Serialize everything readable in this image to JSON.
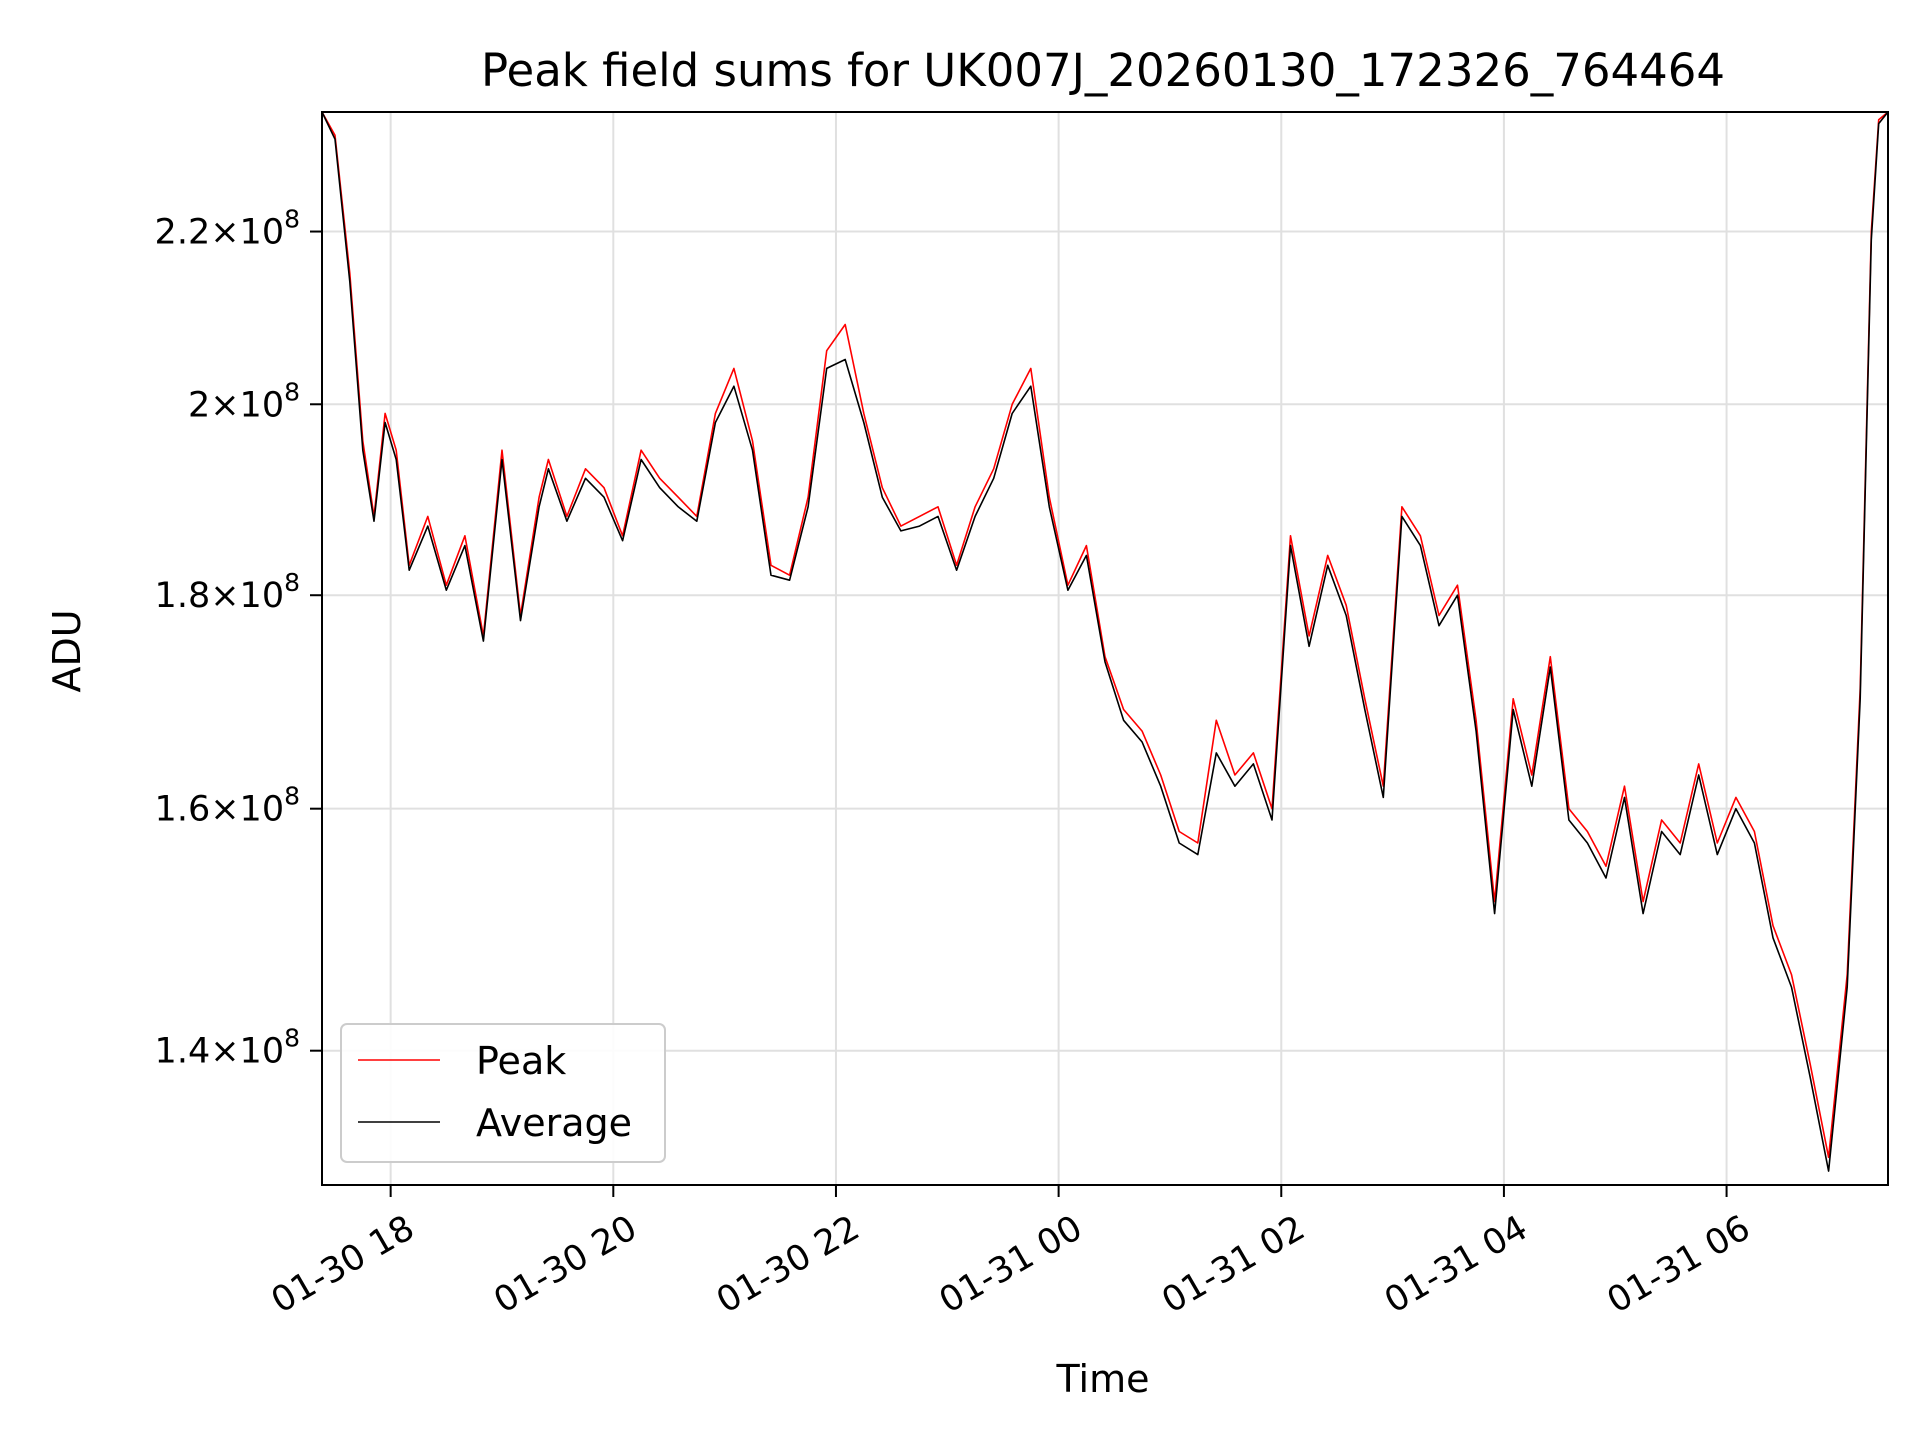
{
  "chart_data": {
    "type": "line",
    "title": "Peak field sums for UK007J_20260130_172326_764464",
    "xlabel": "Time",
    "ylabel": "ADU",
    "y_scale": "log",
    "grid": true,
    "legend_position": "lower-left",
    "xlim": [
      "2026-01-30 17:23",
      "2026-01-31 07:27"
    ],
    "ylim": [
      130000000,
      235000000
    ],
    "x_ticks": [
      {
        "value": "2026-01-30 18:00",
        "label": "01-30 18"
      },
      {
        "value": "2026-01-30 20:00",
        "label": "01-30 20"
      },
      {
        "value": "2026-01-30 22:00",
        "label": "01-30 22"
      },
      {
        "value": "2026-01-31 00:00",
        "label": "01-31 00"
      },
      {
        "value": "2026-01-31 02:00",
        "label": "01-31 02"
      },
      {
        "value": "2026-01-31 04:00",
        "label": "01-31 04"
      },
      {
        "value": "2026-01-31 06:00",
        "label": "01-31 06"
      }
    ],
    "y_ticks": [
      {
        "value": 140000000,
        "mantissa": "1.4",
        "exponent": "8"
      },
      {
        "value": 160000000,
        "mantissa": "1.6",
        "exponent": "8"
      },
      {
        "value": 180000000,
        "mantissa": "1.8",
        "exponent": "8"
      },
      {
        "value": 200000000,
        "mantissa": "2",
        "exponent": "8"
      },
      {
        "value": 220000000,
        "mantissa": "2.2",
        "exponent": "8"
      }
    ],
    "tick_times_label": "×10",
    "series": [
      {
        "name": "Peak",
        "color": "#ff0000",
        "x": [
          "2026-01-30 17:23",
          "2026-01-30 17:30",
          "2026-01-30 17:38",
          "2026-01-30 17:45",
          "2026-01-30 17:51",
          "2026-01-30 17:57",
          "2026-01-30 18:03",
          "2026-01-30 18:10",
          "2026-01-30 18:20",
          "2026-01-30 18:30",
          "2026-01-30 18:40",
          "2026-01-30 18:50",
          "2026-01-30 19:00",
          "2026-01-30 19:10",
          "2026-01-30 19:20",
          "2026-01-30 19:25",
          "2026-01-30 19:35",
          "2026-01-30 19:45",
          "2026-01-30 19:55",
          "2026-01-30 20:05",
          "2026-01-30 20:15",
          "2026-01-30 20:25",
          "2026-01-30 20:35",
          "2026-01-30 20:45",
          "2026-01-30 20:55",
          "2026-01-30 21:05",
          "2026-01-30 21:15",
          "2026-01-30 21:25",
          "2026-01-30 21:35",
          "2026-01-30 21:45",
          "2026-01-30 21:55",
          "2026-01-30 22:05",
          "2026-01-30 22:15",
          "2026-01-30 22:25",
          "2026-01-30 22:35",
          "2026-01-30 22:45",
          "2026-01-30 22:55",
          "2026-01-30 23:05",
          "2026-01-30 23:15",
          "2026-01-30 23:25",
          "2026-01-30 23:35",
          "2026-01-30 23:45",
          "2026-01-30 23:55",
          "2026-01-31 00:05",
          "2026-01-31 00:15",
          "2026-01-31 00:25",
          "2026-01-31 00:35",
          "2026-01-31 00:45",
          "2026-01-31 00:55",
          "2026-01-31 01:05",
          "2026-01-31 01:15",
          "2026-01-31 01:25",
          "2026-01-31 01:35",
          "2026-01-31 01:45",
          "2026-01-31 01:55",
          "2026-01-31 02:05",
          "2026-01-31 02:15",
          "2026-01-31 02:25",
          "2026-01-31 02:35",
          "2026-01-31 02:45",
          "2026-01-31 02:55",
          "2026-01-31 03:05",
          "2026-01-31 03:15",
          "2026-01-31 03:25",
          "2026-01-31 03:35",
          "2026-01-31 03:45",
          "2026-01-31 03:55",
          "2026-01-31 04:05",
          "2026-01-31 04:15",
          "2026-01-31 04:25",
          "2026-01-31 04:35",
          "2026-01-31 04:45",
          "2026-01-31 04:55",
          "2026-01-31 05:05",
          "2026-01-31 05:15",
          "2026-01-31 05:25",
          "2026-01-31 05:35",
          "2026-01-31 05:45",
          "2026-01-31 05:55",
          "2026-01-31 06:05",
          "2026-01-31 06:15",
          "2026-01-31 06:25",
          "2026-01-31 06:35",
          "2026-01-31 06:45",
          "2026-01-31 06:55",
          "2026-01-31 07:05",
          "2026-01-31 07:12",
          "2026-01-31 07:18",
          "2026-01-31 07:22",
          "2026-01-31 07:27"
        ],
        "values": [
          235000000,
          232000000,
          215000000,
          196000000,
          188000000,
          199000000,
          195000000,
          183000000,
          188000000,
          181000000,
          186000000,
          176000000,
          195000000,
          178000000,
          190000000,
          194000000,
          188000000,
          193000000,
          191000000,
          186000000,
          195000000,
          192000000,
          190000000,
          188000000,
          199000000,
          204000000,
          196000000,
          183000000,
          182000000,
          190000000,
          206000000,
          209000000,
          199000000,
          191000000,
          187000000,
          188000000,
          189000000,
          183000000,
          189000000,
          193000000,
          200000000,
          204000000,
          190000000,
          181000000,
          185000000,
          174000000,
          169000000,
          167000000,
          163000000,
          158000000,
          157000000,
          168000000,
          163000000,
          165000000,
          160000000,
          186000000,
          176000000,
          184000000,
          179000000,
          170000000,
          162000000,
          189000000,
          186000000,
          178000000,
          181000000,
          168000000,
          152000000,
          170000000,
          163000000,
          174000000,
          160000000,
          158000000,
          155000000,
          162000000,
          152000000,
          159000000,
          157000000,
          164000000,
          157000000,
          161000000,
          158000000,
          150000000,
          146000000,
          139000000,
          132000000,
          146000000,
          171000000,
          220000000,
          234000000,
          235000000
        ]
      },
      {
        "name": "Average",
        "color": "#000000",
        "x": [
          "2026-01-30 17:23",
          "2026-01-30 17:30",
          "2026-01-30 17:38",
          "2026-01-30 17:45",
          "2026-01-30 17:51",
          "2026-01-30 17:57",
          "2026-01-30 18:03",
          "2026-01-30 18:10",
          "2026-01-30 18:20",
          "2026-01-30 18:30",
          "2026-01-30 18:40",
          "2026-01-30 18:50",
          "2026-01-30 19:00",
          "2026-01-30 19:10",
          "2026-01-30 19:20",
          "2026-01-30 19:25",
          "2026-01-30 19:35",
          "2026-01-30 19:45",
          "2026-01-30 19:55",
          "2026-01-30 20:05",
          "2026-01-30 20:15",
          "2026-01-30 20:25",
          "2026-01-30 20:35",
          "2026-01-30 20:45",
          "2026-01-30 20:55",
          "2026-01-30 21:05",
          "2026-01-30 21:15",
          "2026-01-30 21:25",
          "2026-01-30 21:35",
          "2026-01-30 21:45",
          "2026-01-30 21:55",
          "2026-01-30 22:05",
          "2026-01-30 22:15",
          "2026-01-30 22:25",
          "2026-01-30 22:35",
          "2026-01-30 22:45",
          "2026-01-30 22:55",
          "2026-01-30 23:05",
          "2026-01-30 23:15",
          "2026-01-30 23:25",
          "2026-01-30 23:35",
          "2026-01-30 23:45",
          "2026-01-30 23:55",
          "2026-01-31 00:05",
          "2026-01-31 00:15",
          "2026-01-31 00:25",
          "2026-01-31 00:35",
          "2026-01-31 00:45",
          "2026-01-31 00:55",
          "2026-01-31 01:05",
          "2026-01-31 01:15",
          "2026-01-31 01:25",
          "2026-01-31 01:35",
          "2026-01-31 01:45",
          "2026-01-31 01:55",
          "2026-01-31 02:05",
          "2026-01-31 02:15",
          "2026-01-31 02:25",
          "2026-01-31 02:35",
          "2026-01-31 02:45",
          "2026-01-31 02:55",
          "2026-01-31 03:05",
          "2026-01-31 03:15",
          "2026-01-31 03:25",
          "2026-01-31 03:35",
          "2026-01-31 03:45",
          "2026-01-31 03:55",
          "2026-01-31 04:05",
          "2026-01-31 04:15",
          "2026-01-31 04:25",
          "2026-01-31 04:35",
          "2026-01-31 04:45",
          "2026-01-31 04:55",
          "2026-01-31 05:05",
          "2026-01-31 05:15",
          "2026-01-31 05:25",
          "2026-01-31 05:35",
          "2026-01-31 05:45",
          "2026-01-31 05:55",
          "2026-01-31 06:05",
          "2026-01-31 06:15",
          "2026-01-31 06:25",
          "2026-01-31 06:35",
          "2026-01-31 06:45",
          "2026-01-31 06:55",
          "2026-01-31 07:05",
          "2026-01-31 07:12",
          "2026-01-31 07:18",
          "2026-01-31 07:22",
          "2026-01-31 07:27"
        ],
        "values": [
          235000000,
          231500000,
          214000000,
          195000000,
          187500000,
          198000000,
          194000000,
          182500000,
          187000000,
          180500000,
          185000000,
          175500000,
          194000000,
          177500000,
          189000000,
          193000000,
          187500000,
          192000000,
          190000000,
          185500000,
          194000000,
          191000000,
          189000000,
          187500000,
          198000000,
          202000000,
          195000000,
          182000000,
          181500000,
          189000000,
          204000000,
          205000000,
          198000000,
          190000000,
          186500000,
          187000000,
          188000000,
          182500000,
          188000000,
          192000000,
          199000000,
          202000000,
          189000000,
          180500000,
          184000000,
          173500000,
          168000000,
          166000000,
          162000000,
          157000000,
          156000000,
          165000000,
          162000000,
          164000000,
          159000000,
          185000000,
          175000000,
          183000000,
          178000000,
          169000000,
          161000000,
          188000000,
          185000000,
          177000000,
          180000000,
          167000000,
          151000000,
          169000000,
          162000000,
          173000000,
          159000000,
          157000000,
          154000000,
          161000000,
          151000000,
          158000000,
          156000000,
          163000000,
          156000000,
          160000000,
          157000000,
          149000000,
          145000000,
          138000000,
          131000000,
          145000000,
          170000000,
          219000000,
          233500000,
          235000000
        ]
      }
    ]
  }
}
